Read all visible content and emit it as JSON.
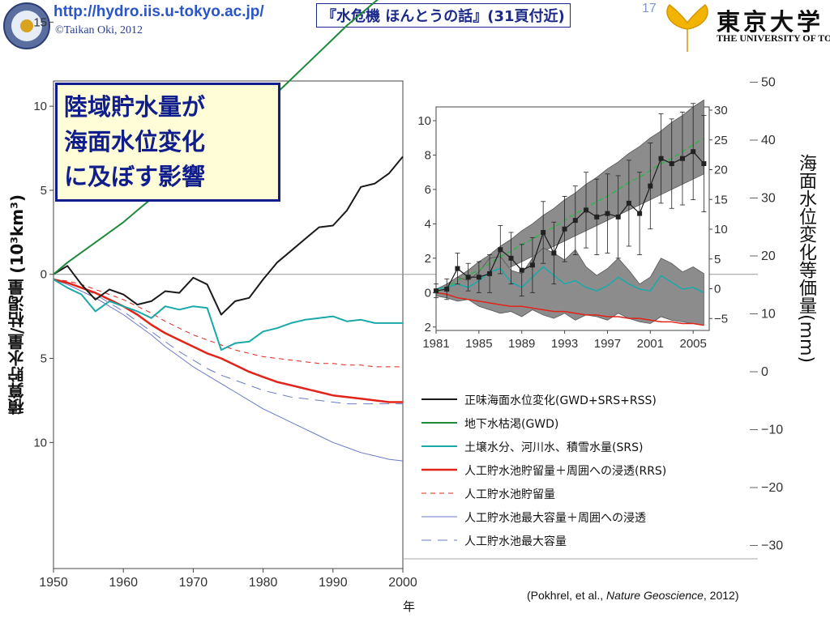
{
  "header": {
    "url": "http://hydro.iis.u-tokyo.ac.jp/",
    "copyright": "©Taikan Oki, 2012",
    "book_reference": "『水危機 ほんとうの話』(31頁付近)",
    "page_number": "17",
    "university_jp": "東京大学",
    "university_en": "THE UNIVERSITY OF TOKYO"
  },
  "title_box": {
    "lines": [
      "陸域貯水量が",
      "海面水位変化",
      "に及ぼす影響"
    ],
    "border_color": "#101d8c",
    "background": "#fffdd8"
  },
  "axis": {
    "y_left_label": "積算貯水量/枯渇量 (10³km³)",
    "y_right_label": "海面水位変化等価量(mm)",
    "x_label": "年"
  },
  "citation": {
    "prefix": "(Pokhrel, et al., ",
    "journal": "Nature Geoscience",
    "suffix": ", 2012)"
  },
  "chart_data": [
    {
      "type": "line",
      "x": [
        1950,
        1952,
        1954,
        1956,
        1958,
        1960,
        1962,
        1964,
        1966,
        1968,
        1970,
        1972,
        1974,
        1976,
        1978,
        1980,
        1982,
        1984,
        1986,
        1988,
        1990,
        1992,
        1994,
        1996,
        1998,
        2000
      ],
      "xlim": [
        1950,
        2000
      ],
      "x_ticks": [
        "1950",
        "1960",
        "1970",
        "1980",
        "1990",
        "2000"
      ],
      "y_left": {
        "range": [
          -17.5,
          11.5
        ],
        "ticks": [
          {
            "value": 15,
            "label": "15"
          },
          {
            "value": 10,
            "label": "10"
          },
          {
            "value": 5,
            "label": "5"
          },
          {
            "value": 0,
            "label": "0"
          },
          {
            "value": -5,
            "label": "5"
          },
          {
            "value": -10,
            "label": "10"
          }
        ]
      },
      "y_right": {
        "ticks": [
          {
            "value": 50,
            "label": "50"
          },
          {
            "value": 40,
            "label": "40"
          },
          {
            "value": 30,
            "label": "30"
          },
          {
            "value": 20,
            "label": "20"
          },
          {
            "value": 10,
            "label": "10"
          },
          {
            "value": 0,
            "label": "0"
          },
          {
            "value": -10,
            "label": "−10"
          },
          {
            "value": -20,
            "label": "−20"
          },
          {
            "value": -30,
            "label": "−30"
          }
        ]
      },
      "series": [
        {
          "name": "正味海面水位変化(GWD+SRS+RSS)",
          "color": "#1a1a1a",
          "dash": "solid",
          "width": 2,
          "values": [
            0,
            0.5,
            -0.6,
            -1.5,
            -0.9,
            -1.2,
            -1.8,
            -1.6,
            -1.0,
            -1.1,
            -0.2,
            -0.6,
            -2.4,
            -1.6,
            -1.4,
            -0.3,
            0.7,
            1.4,
            2.1,
            2.8,
            2.9,
            3.8,
            5.2,
            5.4,
            6.0,
            7.0
          ]
        },
        {
          "name": "地下水枯渇(GWD)",
          "color": "#1e8a3a",
          "dash": "solid",
          "width": 2,
          "values": [
            0,
            0.7,
            1.3,
            1.9,
            2.5,
            3.1,
            3.8,
            4.5,
            5.2,
            5.9,
            6.6,
            7.3,
            8.0,
            8.6,
            9.3,
            10.0,
            10.8,
            11.6,
            12.4,
            13.2,
            14.0,
            14.8,
            15.5,
            16.2,
            16.9,
            17.5
          ]
        },
        {
          "name": "土壌水分、河川水、積雪水量(SRS)",
          "color": "#1aa9a9",
          "dash": "solid",
          "width": 2,
          "values": [
            -0.3,
            -0.8,
            -1.2,
            -2.2,
            -1.6,
            -1.9,
            -2.2,
            -2.6,
            -1.9,
            -2.1,
            -1.9,
            -2.0,
            -4.5,
            -4.1,
            -4.0,
            -3.4,
            -3.2,
            -2.9,
            -2.7,
            -2.6,
            -2.5,
            -2.8,
            -2.7,
            -2.9,
            -2.9,
            -2.9
          ]
        },
        {
          "name": "人工貯水池貯留量＋周囲への浸透(RRS)",
          "color": "#e2231a",
          "dash": "solid",
          "width": 2.5,
          "values": [
            -0.3,
            -0.5,
            -0.8,
            -1.1,
            -1.5,
            -1.9,
            -2.4,
            -3.0,
            -3.5,
            -3.9,
            -4.3,
            -4.7,
            -5.0,
            -5.4,
            -5.8,
            -6.1,
            -6.4,
            -6.6,
            -6.8,
            -7.0,
            -7.2,
            -7.3,
            -7.4,
            -7.5,
            -7.6,
            -7.6
          ]
        },
        {
          "name": "人工貯水池貯留量",
          "color": "#e2231a",
          "dash": "6,5",
          "width": 1,
          "values": [
            -0.3,
            -0.4,
            -0.6,
            -0.9,
            -1.2,
            -1.5,
            -1.9,
            -2.3,
            -2.8,
            -3.2,
            -3.6,
            -3.9,
            -4.2,
            -4.5,
            -4.7,
            -4.9,
            -5.0,
            -5.1,
            -5.2,
            -5.3,
            -5.3,
            -5.4,
            -5.4,
            -5.5,
            -5.5,
            -5.5
          ]
        },
        {
          "name": "人工貯水池最大容量＋周囲への浸透",
          "color": "#6a79c6",
          "dash": "solid",
          "width": 1,
          "values": [
            -0.3,
            -0.6,
            -1.0,
            -1.4,
            -1.9,
            -2.4,
            -3.0,
            -3.6,
            -4.3,
            -4.9,
            -5.5,
            -6.0,
            -6.5,
            -7.0,
            -7.5,
            -8.0,
            -8.4,
            -8.8,
            -9.2,
            -9.6,
            -10.0,
            -10.3,
            -10.6,
            -10.8,
            -11.0,
            -11.1
          ]
        },
        {
          "name": "人工貯水池最大容量",
          "color": "#6a79c6",
          "dash": "12,8",
          "width": 1,
          "values": [
            -0.3,
            -0.5,
            -0.8,
            -1.2,
            -1.7,
            -2.2,
            -2.8,
            -3.4,
            -4.0,
            -4.6,
            -5.1,
            -5.6,
            -6.0,
            -6.3,
            -6.6,
            -6.9,
            -7.1,
            -7.3,
            -7.4,
            -7.5,
            -7.6,
            -7.7,
            -7.7,
            -7.7,
            -7.7,
            -7.7
          ]
        }
      ]
    },
    {
      "type": "line",
      "x": [
        1981,
        1982,
        1983,
        1984,
        1985,
        1986,
        1987,
        1988,
        1989,
        1990,
        1991,
        1992,
        1993,
        1994,
        1995,
        1996,
        1997,
        1998,
        1999,
        2000,
        2001,
        2002,
        2003,
        2004,
        2005,
        2006
      ],
      "xlim": [
        1981,
        2006.5
      ],
      "x_ticks": [
        "1981",
        "1985",
        "1989",
        "1993",
        "1997",
        "2001",
        "2005"
      ],
      "y_left": {
        "range": [
          -2.2,
          10.8
        ],
        "ticks": [
          {
            "value": 10,
            "label": "10"
          },
          {
            "value": 8,
            "label": "8"
          },
          {
            "value": 6,
            "label": "6"
          },
          {
            "value": 4,
            "label": "4"
          },
          {
            "value": 2,
            "label": "2"
          },
          {
            "value": 0,
            "label": "0"
          },
          {
            "value": -2,
            "label": "2"
          }
        ]
      },
      "y_right": {
        "ticks": [
          {
            "value": 30,
            "label": "30"
          },
          {
            "value": 25,
            "label": "25"
          },
          {
            "value": 20,
            "label": "20"
          },
          {
            "value": 15,
            "label": "15"
          },
          {
            "value": 10,
            "label": "10"
          },
          {
            "value": 5,
            "label": "5"
          },
          {
            "value": 0,
            "label": "0"
          },
          {
            "value": -5,
            "label": "−5"
          }
        ]
      },
      "bands": [
        {
          "color": "#8c8c8c",
          "lower": [
            -0.1,
            -0.1,
            0.1,
            0.3,
            0.6,
            0.9,
            1.2,
            1.5,
            1.8,
            2.1,
            2.4,
            2.7,
            3.0,
            3.3,
            3.6,
            3.9,
            4.2,
            4.5,
            4.8,
            5.1,
            5.4,
            5.7,
            6.0,
            6.3,
            6.6,
            6.9
          ],
          "upper": [
            0.1,
            0.5,
            0.9,
            1.3,
            1.8,
            2.2,
            2.7,
            3.1,
            3.6,
            4.0,
            4.5,
            4.9,
            5.4,
            5.8,
            6.3,
            6.7,
            7.2,
            7.6,
            8.1,
            8.5,
            9.0,
            9.4,
            9.9,
            10.3,
            10.8,
            11.2
          ]
        },
        {
          "color": "#8c8c8c",
          "lower": [
            -0.2,
            -0.3,
            -0.5,
            -0.4,
            -0.8,
            -1.0,
            -1.2,
            -1.1,
            -1.4,
            -1.0,
            -1.3,
            -1.5,
            -1.2,
            -1.6,
            -1.3,
            -1.4,
            -1.6,
            -1.2,
            -1.5,
            -1.7,
            -1.8,
            -1.4,
            -1.6,
            -1.7,
            -1.8,
            -1.9
          ],
          "upper": [
            0.2,
            0.5,
            0.9,
            0.7,
            1.2,
            2.0,
            2.1,
            1.3,
            1.1,
            2.0,
            2.6,
            2.3,
            1.9,
            2.5,
            1.5,
            1.0,
            1.4,
            2.0,
            1.3,
            0.5,
            0.9,
            2.0,
            1.7,
            1.2,
            1.5,
            1.1
          ]
        }
      ],
      "series": [
        {
          "name": "",
          "color": "#2db54a",
          "dash": "6,4",
          "width": 1.5,
          "values": [
            0,
            0.3,
            0.7,
            1.0,
            1.3,
            1.7,
            2.1,
            2.4,
            2.8,
            3.1,
            3.5,
            3.8,
            4.2,
            4.6,
            4.9,
            5.3,
            5.6,
            6.0,
            6.4,
            6.7,
            7.1,
            7.5,
            7.8,
            8.2,
            8.6,
            9.0
          ]
        },
        {
          "name": "",
          "color": "#1aa9a9",
          "dash": "solid",
          "width": 1.5,
          "values": [
            0.2,
            0.3,
            0.5,
            0.3,
            0.7,
            1.2,
            1.4,
            0.6,
            0.3,
            0.9,
            1.5,
            1.0,
            0.5,
            0.7,
            0.3,
            0.1,
            0.4,
            0.9,
            0.5,
            0.2,
            0.1,
            1.0,
            0.6,
            0.2,
            0.3,
            0.0
          ]
        },
        {
          "name": "",
          "color": "#e2231a",
          "dash": "solid",
          "width": 1.5,
          "values": [
            0.0,
            -0.1,
            -0.3,
            -0.4,
            -0.5,
            -0.6,
            -0.7,
            -0.8,
            -0.8,
            -0.9,
            -1.0,
            -1.1,
            -1.1,
            -1.2,
            -1.3,
            -1.3,
            -1.4,
            -1.4,
            -1.5,
            -1.5,
            -1.6,
            -1.7,
            -1.7,
            -1.8,
            -1.8,
            -1.9
          ]
        },
        {
          "name": "",
          "color": "#1a1a1a",
          "dash": "solid",
          "width": 1.2,
          "marker": "square",
          "values": [
            0.1,
            0.2,
            1.4,
            0.9,
            0.9,
            1.1,
            2.5,
            2.0,
            1.3,
            1.6,
            3.5,
            2.3,
            3.7,
            4.2,
            4.8,
            4.4,
            4.6,
            4.4,
            5.2,
            4.6,
            6.2,
            7.8,
            7.5,
            7.8,
            8.2,
            7.5
          ],
          "errors": [
            0.4,
            0.6,
            0.9,
            0.8,
            0.9,
            1.1,
            1.4,
            1.5,
            1.5,
            1.6,
            1.8,
            1.8,
            1.9,
            2.0,
            2.2,
            2.2,
            2.3,
            2.4,
            2.5,
            2.4,
            2.5,
            2.6,
            2.6,
            2.7,
            2.8,
            2.8
          ]
        }
      ]
    }
  ]
}
